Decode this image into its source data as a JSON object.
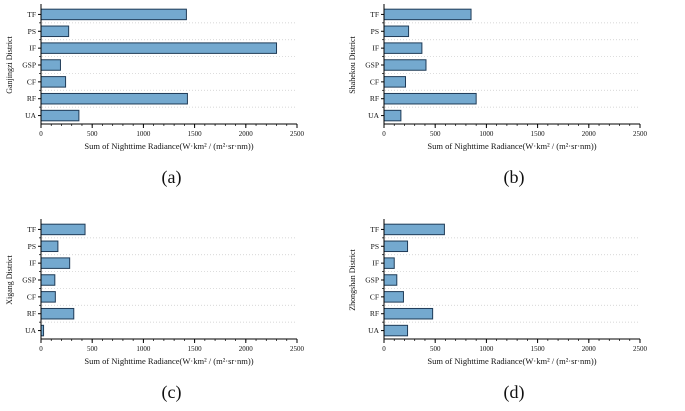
{
  "style": {
    "bar_fill": "#74a9cf",
    "bar_edge": "#1f3b57",
    "axis_color": "#000000",
    "grid_color": "#c9c9c9",
    "text_color": "#111111"
  },
  "chart_data": [
    {
      "type": "bar",
      "orientation": "horizontal",
      "caption": "(a)",
      "ylabel": "Ganjingzi District",
      "xlabel": "Sum of Nighttime Radiance(W·km² / (m²·sr·nm))",
      "categories": [
        "TF",
        "PS",
        "IF",
        "GSP",
        "CF",
        "RF",
        "UA"
      ],
      "values": [
        1420,
        270,
        2300,
        190,
        240,
        1430,
        370
      ],
      "xlim": [
        0,
        2500
      ],
      "xticks": [
        0,
        500,
        1000,
        1500,
        2000,
        2500
      ],
      "minor_tick_step": 100,
      "grid": "dotted-horizontal"
    },
    {
      "type": "bar",
      "orientation": "horizontal",
      "caption": "(b)",
      "ylabel": "Shahekou District",
      "xlabel": "Sum of Nighttime Radiance(W·km² / (m²·sr·nm))",
      "categories": [
        "TF",
        "PS",
        "IF",
        "GSP",
        "CF",
        "RF",
        "UA"
      ],
      "values": [
        850,
        240,
        370,
        410,
        210,
        900,
        165
      ],
      "xlim": [
        0,
        2500
      ],
      "xticks": [
        0,
        500,
        1000,
        1500,
        2000,
        2500
      ],
      "minor_tick_step": 100,
      "grid": "dotted-horizontal"
    },
    {
      "type": "bar",
      "orientation": "horizontal",
      "caption": "(c)",
      "ylabel": "Xigang District",
      "xlabel": "Sum of Nighttime Radiance(W·km² / (m²·sr·nm))",
      "categories": [
        "TF",
        "PS",
        "IF",
        "GSP",
        "CF",
        "RF",
        "UA"
      ],
      "values": [
        430,
        165,
        280,
        135,
        140,
        320,
        25
      ],
      "xlim": [
        0,
        2500
      ],
      "xticks": [
        0,
        500,
        1000,
        1500,
        2000,
        2500
      ],
      "minor_tick_step": 100,
      "grid": "dotted-horizontal"
    },
    {
      "type": "bar",
      "orientation": "horizontal",
      "caption": "(d)",
      "ylabel": "Zhongshan District",
      "xlabel": "Sum of Nighttime Radiance(W·km² / (m²·sr·nm))",
      "categories": [
        "TF",
        "PS",
        "IF",
        "GSP",
        "CF",
        "RF",
        "UA"
      ],
      "values": [
        590,
        230,
        100,
        125,
        190,
        475,
        230
      ],
      "xlim": [
        0,
        2500
      ],
      "xticks": [
        0,
        500,
        1000,
        1500,
        2000,
        2500
      ],
      "minor_tick_step": 100,
      "grid": "dotted-horizontal"
    }
  ]
}
